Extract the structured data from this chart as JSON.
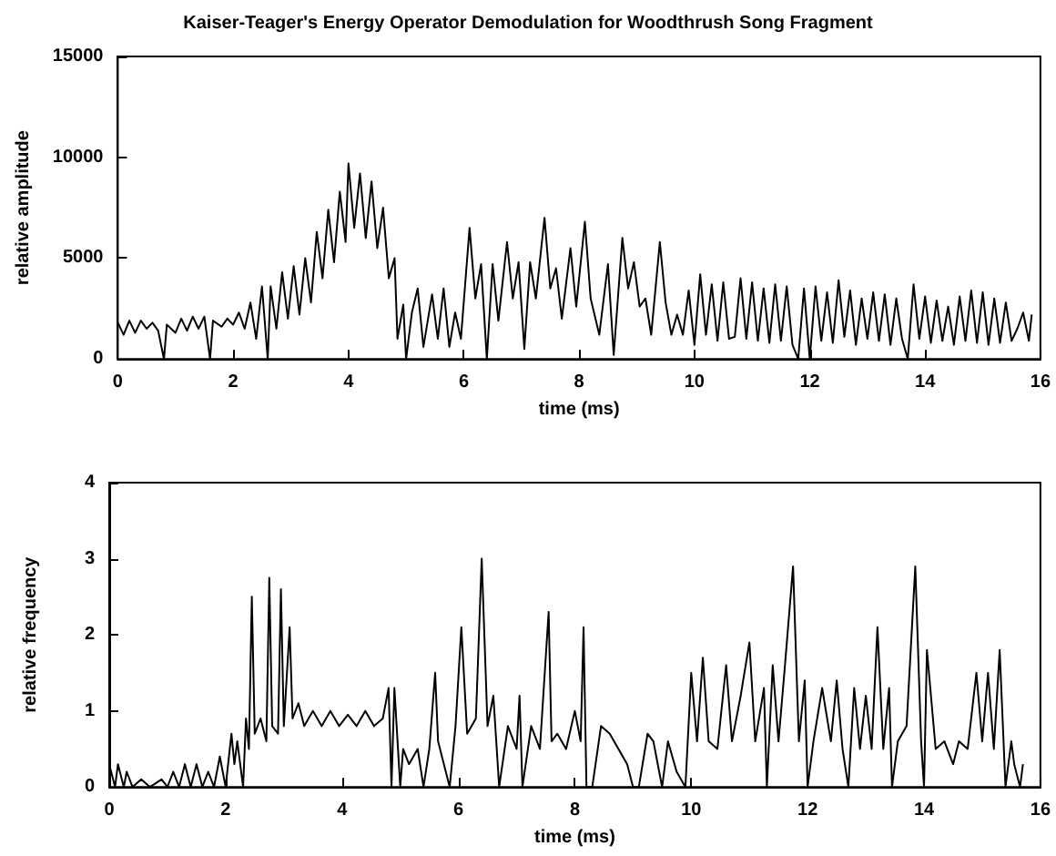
{
  "chart_data": [
    {
      "type": "line",
      "title": "Kaiser-Teager's Energy Operator Demodulation for Woodthrush Song Fragment",
      "xlabel": "time (ms)",
      "ylabel": "relative amplitude",
      "xlim": [
        0,
        16
      ],
      "xticks": [
        0,
        2,
        4,
        6,
        8,
        10,
        12,
        14,
        16
      ],
      "ylim": [
        0,
        15000
      ],
      "yticks": [
        0,
        5000,
        10000,
        15000
      ],
      "grid": false,
      "marker": "none",
      "line_style": "solid",
      "color": "#000000",
      "x": [
        0,
        0.1,
        0.2,
        0.3,
        0.4,
        0.5,
        0.6,
        0.7,
        0.8,
        0.85,
        1.0,
        1.1,
        1.2,
        1.3,
        1.4,
        1.5,
        1.6,
        1.65,
        1.8,
        1.9,
        2.0,
        2.1,
        2.2,
        2.3,
        2.4,
        2.5,
        2.6,
        2.65,
        2.75,
        2.85,
        2.95,
        3.05,
        3.15,
        3.25,
        3.35,
        3.45,
        3.55,
        3.65,
        3.75,
        3.85,
        3.95,
        4.0,
        4.1,
        4.2,
        4.3,
        4.4,
        4.5,
        4.6,
        4.7,
        4.8,
        4.85,
        4.95,
        5.0,
        5.1,
        5.2,
        5.3,
        5.45,
        5.55,
        5.65,
        5.75,
        5.85,
        5.95,
        6.1,
        6.2,
        6.3,
        6.4,
        6.5,
        6.6,
        6.75,
        6.85,
        6.95,
        7.05,
        7.15,
        7.25,
        7.4,
        7.5,
        7.6,
        7.7,
        7.85,
        7.95,
        8.1,
        8.2,
        8.35,
        8.5,
        8.6,
        8.75,
        8.85,
        8.95,
        9.05,
        9.15,
        9.25,
        9.4,
        9.5,
        9.6,
        9.7,
        9.8,
        9.9,
        10.0,
        10.1,
        10.2,
        10.3,
        10.4,
        10.5,
        10.6,
        10.7,
        10.8,
        10.9,
        11.0,
        11.1,
        11.2,
        11.3,
        11.4,
        11.5,
        11.6,
        11.7,
        11.8,
        11.9,
        12.0,
        12.1,
        12.2,
        12.3,
        12.4,
        12.5,
        12.6,
        12.7,
        12.8,
        12.9,
        13.0,
        13.1,
        13.2,
        13.3,
        13.4,
        13.5,
        13.6,
        13.7,
        13.8,
        13.9,
        14.0,
        14.1,
        14.2,
        14.3,
        14.4,
        14.5,
        14.6,
        14.7,
        14.8,
        14.9,
        15.0,
        15.1,
        15.2,
        15.3,
        15.4,
        15.5,
        15.6,
        15.7,
        15.8,
        15.85
      ],
      "values": [
        1800,
        1200,
        1900,
        1300,
        1900,
        1500,
        1800,
        1400,
        0,
        1700,
        1300,
        2000,
        1400,
        2100,
        1500,
        2100,
        0,
        1900,
        1600,
        2000,
        1700,
        2300,
        1500,
        2800,
        1000,
        3600,
        0,
        3600,
        1500,
        4300,
        2000,
        4600,
        2200,
        5000,
        2800,
        6300,
        4000,
        7400,
        4800,
        8300,
        5800,
        9700,
        6500,
        9200,
        6000,
        8800,
        5500,
        7500,
        4000,
        5000,
        1000,
        2700,
        0,
        2300,
        3500,
        600,
        3200,
        1000,
        3500,
        600,
        2300,
        1000,
        6500,
        3000,
        4700,
        0,
        4700,
        1900,
        5800,
        3000,
        4800,
        500,
        4800,
        3000,
        7000,
        3500,
        4500,
        2000,
        5500,
        2600,
        6800,
        3000,
        1200,
        4700,
        200,
        6000,
        3500,
        4800,
        2600,
        3000,
        1200,
        5800,
        2800,
        1200,
        2200,
        1200,
        3400,
        700,
        4200,
        1200,
        3700,
        900,
        3800,
        1000,
        1100,
        4000,
        1000,
        3800,
        900,
        3500,
        800,
        3700,
        900,
        3600,
        700,
        0,
        3500,
        0,
        3600,
        900,
        3300,
        800,
        3900,
        1100,
        3400,
        700,
        3000,
        1000,
        3300,
        900,
        3200,
        700,
        3000,
        1000,
        0,
        3700,
        1000,
        3100,
        800,
        2900,
        900,
        2600,
        700,
        3100,
        900,
        3400,
        800,
        3300,
        700,
        3000,
        800,
        2800,
        900,
        1500,
        2300,
        900,
        2200
      ]
    },
    {
      "type": "line",
      "xlabel": "time (ms)",
      "ylabel": "relative frequency",
      "xlim": [
        0,
        16
      ],
      "xticks": [
        0,
        2,
        4,
        6,
        8,
        10,
        12,
        14,
        16
      ],
      "ylim": [
        0,
        4
      ],
      "yticks": [
        0,
        1,
        2,
        3,
        4
      ],
      "grid": false,
      "marker": "none",
      "line_style": "solid",
      "color": "#000000",
      "x": [
        0,
        0.1,
        0.15,
        0.25,
        0.3,
        0.4,
        0.55,
        0.7,
        0.9,
        1.0,
        1.1,
        1.2,
        1.3,
        1.4,
        1.5,
        1.6,
        1.7,
        1.8,
        1.9,
        2.0,
        2.1,
        2.15,
        2.2,
        2.3,
        2.35,
        2.4,
        2.45,
        2.5,
        2.6,
        2.7,
        2.75,
        2.8,
        2.9,
        2.95,
        3.0,
        3.1,
        3.15,
        3.25,
        3.35,
        3.5,
        3.65,
        3.8,
        3.95,
        4.1,
        4.25,
        4.4,
        4.55,
        4.7,
        4.8,
        4.85,
        4.9,
        5.0,
        5.05,
        5.15,
        5.3,
        5.4,
        5.5,
        5.6,
        5.65,
        5.75,
        5.85,
        5.95,
        6.05,
        6.15,
        6.3,
        6.4,
        6.5,
        6.6,
        6.7,
        6.85,
        7.0,
        7.05,
        7.1,
        7.25,
        7.4,
        7.55,
        7.6,
        7.7,
        7.85,
        8.0,
        8.1,
        8.15,
        8.2,
        8.3,
        8.45,
        8.6,
        8.75,
        8.9,
        9.0,
        9.1,
        9.25,
        9.35,
        9.5,
        9.6,
        9.75,
        9.9,
        10.0,
        10.1,
        10.2,
        10.3,
        10.45,
        10.6,
        10.7,
        10.85,
        11.0,
        11.1,
        11.25,
        11.3,
        11.4,
        11.5,
        11.6,
        11.75,
        11.85,
        11.95,
        12.0,
        12.1,
        12.25,
        12.4,
        12.5,
        12.6,
        12.7,
        12.8,
        12.9,
        13.0,
        13.1,
        13.2,
        13.3,
        13.4,
        13.45,
        13.55,
        13.7,
        13.85,
        13.95,
        14.0,
        14.05,
        14.2,
        14.35,
        14.5,
        14.6,
        14.75,
        14.9,
        15.0,
        15.1,
        15.2,
        15.3,
        15.4,
        15.5,
        15.55,
        15.65,
        15.7
      ],
      "values": [
        0.3,
        0,
        0.3,
        0,
        0.2,
        0,
        0.1,
        0,
        0.1,
        0,
        0.2,
        0,
        0.3,
        0,
        0.3,
        0,
        0.2,
        0,
        0.4,
        0,
        0.7,
        0.3,
        0.6,
        0,
        0.9,
        0.5,
        2.5,
        0.7,
        0.9,
        0.6,
        2.75,
        0.8,
        0.7,
        2.6,
        0.8,
        2.1,
        0.9,
        1.1,
        0.8,
        1.0,
        0.8,
        1.0,
        0.8,
        0.95,
        0.8,
        1.0,
        0.8,
        0.9,
        1.3,
        0,
        1.3,
        0,
        0.5,
        0.3,
        0.5,
        0,
        0.5,
        1.5,
        0.6,
        0.3,
        0,
        0.8,
        2.1,
        0.7,
        0.9,
        3.0,
        0.8,
        1.2,
        0,
        0.8,
        0.5,
        1.2,
        0,
        0.8,
        0.5,
        2.3,
        0.6,
        0.7,
        0.5,
        1.0,
        0.6,
        2.1,
        0,
        0,
        0.8,
        0.7,
        0.5,
        0.3,
        0,
        0,
        0.7,
        0.6,
        0,
        0.6,
        0.2,
        0,
        1.5,
        0.6,
        1.7,
        0.6,
        0.5,
        1.6,
        0.6,
        1.2,
        1.9,
        0.6,
        1.3,
        0,
        1.6,
        0.6,
        1.5,
        2.9,
        0.6,
        1.4,
        0,
        0.6,
        1.3,
        0.6,
        1.4,
        0.5,
        0,
        1.3,
        0.5,
        1.2,
        0.5,
        2.1,
        0.5,
        1.3,
        0,
        0.6,
        0.8,
        2.9,
        0.6,
        0,
        1.8,
        0.5,
        0.6,
        0.3,
        0.6,
        0.5,
        1.5,
        0.6,
        1.5,
        0.5,
        1.8,
        0,
        0.6,
        0.3,
        0,
        0.3
      ]
    }
  ]
}
